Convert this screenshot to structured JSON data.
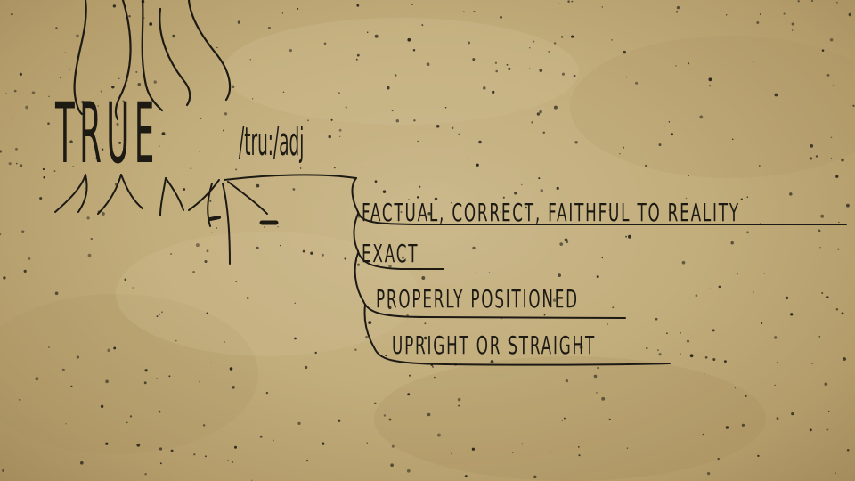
{
  "headword": "TRUE",
  "pronunciation": "/tru:/adj",
  "definitions": [
    "FACTUAL, CORRECT, FAITHFUL TO REALITY",
    "EXACT",
    "PROPERLY POSITIONED",
    "UPRIGHT OR STRAIGHT"
  ],
  "colors": {
    "parchment": "#c2ad7c",
    "ink": "#1d1a14"
  }
}
